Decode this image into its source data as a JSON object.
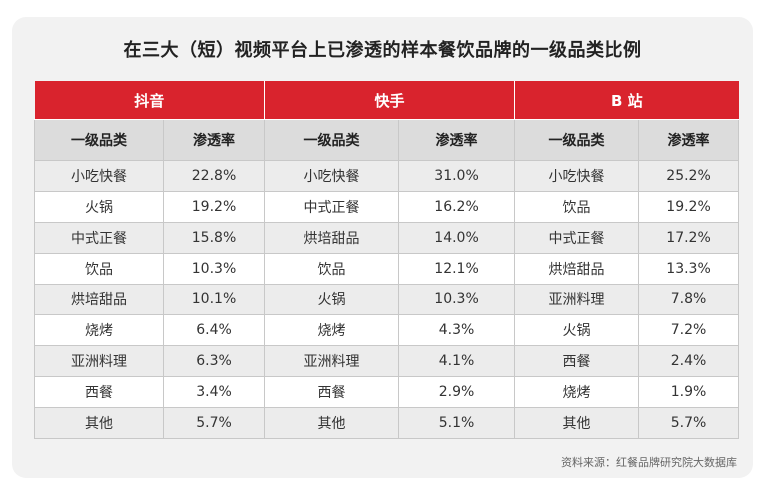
{
  "title": "在三大（短）视频平台上已渗透的样本餐饮品牌的一级品类比例",
  "source": "资料来源：红餐品牌研究院大数据库",
  "chart_data": {
    "type": "table",
    "title": "在三大（短）视频平台上已渗透的样本餐饮品牌的一级品类比例",
    "column_headers": [
      "一级品类",
      "渗透率"
    ],
    "platforms": [
      {
        "name": "抖音",
        "rows": [
          {
            "category": "小吃快餐",
            "rate": "22.8%"
          },
          {
            "category": "火锅",
            "rate": "19.2%"
          },
          {
            "category": "中式正餐",
            "rate": "15.8%"
          },
          {
            "category": "饮品",
            "rate": "10.3%"
          },
          {
            "category": "烘培甜品",
            "rate": "10.1%"
          },
          {
            "category": "烧烤",
            "rate": "6.4%"
          },
          {
            "category": "亚洲料理",
            "rate": "6.3%"
          },
          {
            "category": "西餐",
            "rate": "3.4%"
          },
          {
            "category": "其他",
            "rate": "5.7%"
          }
        ]
      },
      {
        "name": "快手",
        "rows": [
          {
            "category": "小吃快餐",
            "rate": "31.0%"
          },
          {
            "category": "中式正餐",
            "rate": "16.2%"
          },
          {
            "category": "烘培甜品",
            "rate": "14.0%"
          },
          {
            "category": "饮品",
            "rate": "12.1%"
          },
          {
            "category": "火锅",
            "rate": "10.3%"
          },
          {
            "category": "烧烤",
            "rate": "4.3%"
          },
          {
            "category": "亚洲料理",
            "rate": "4.1%"
          },
          {
            "category": "西餐",
            "rate": "2.9%"
          },
          {
            "category": "其他",
            "rate": "5.1%"
          }
        ]
      },
      {
        "name": "B 站",
        "rows": [
          {
            "category": "小吃快餐",
            "rate": "25.2%"
          },
          {
            "category": "饮品",
            "rate": "19.2%"
          },
          {
            "category": "中式正餐",
            "rate": "17.2%"
          },
          {
            "category": "烘焙甜品",
            "rate": "13.3%"
          },
          {
            "category": "亚洲料理",
            "rate": "7.8%"
          },
          {
            "category": "火锅",
            "rate": "7.2%"
          },
          {
            "category": "西餐",
            "rate": "2.4%"
          },
          {
            "category": "烧烤",
            "rate": "1.9%"
          },
          {
            "category": "其他",
            "rate": "5.7%"
          }
        ]
      }
    ]
  },
  "colors": {
    "header_red": "#d9232d",
    "subheader_gray": "#dcdcdc",
    "stripe_gray": "#ececec"
  }
}
